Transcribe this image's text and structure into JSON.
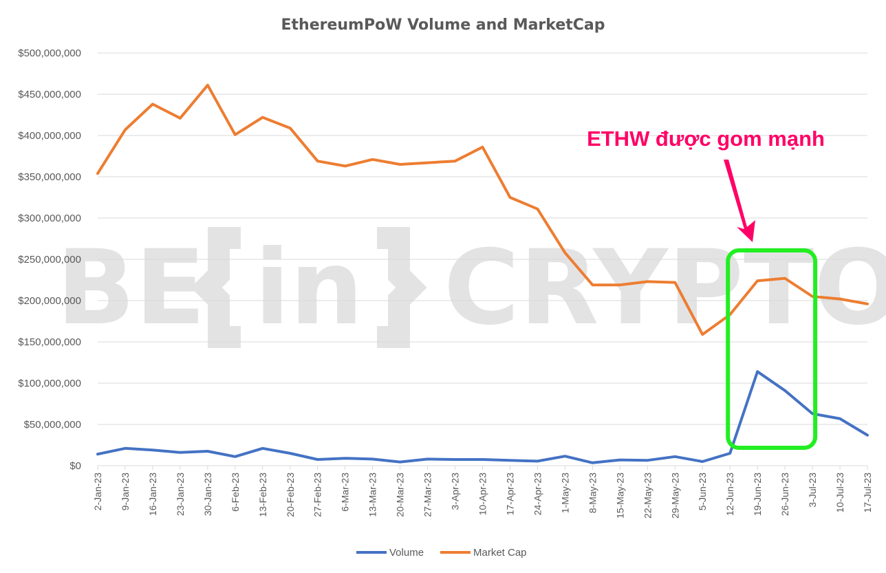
{
  "chart_data": {
    "type": "line",
    "title": "EthereumPoW Volume and MarketCap",
    "categories": [
      "2-Jan-23",
      "9-Jan-23",
      "16-Jan-23",
      "23-Jan-23",
      "30-Jan-23",
      "6-Feb-23",
      "13-Feb-23",
      "20-Feb-23",
      "27-Feb-23",
      "6-Mar-23",
      "13-Mar-23",
      "20-Mar-23",
      "27-Mar-23",
      "3-Apr-23",
      "10-Apr-23",
      "17-Apr-23",
      "24-Apr-23",
      "1-May-23",
      "8-May-23",
      "15-May-23",
      "22-May-23",
      "29-May-23",
      "5-Jun-23",
      "12-Jun-23",
      "19-Jun-23",
      "26-Jun-23",
      "3-Jul-23",
      "10-Jul-23",
      "17-Jul-23"
    ],
    "series": [
      {
        "name": "Volume",
        "color": "#4472c4",
        "values": [
          14000000,
          21000000,
          19000000,
          16000000,
          17500000,
          11000000,
          21000000,
          15000000,
          7500000,
          9000000,
          8000000,
          4500000,
          8000000,
          7500000,
          7500000,
          6500000,
          5500000,
          11500000,
          3500000,
          7000000,
          6500000,
          11000000,
          5000000,
          15000000,
          114000000,
          91000000,
          63000000,
          57000000,
          37000000
        ]
      },
      {
        "name": "Market Cap",
        "color": "#ed7d31",
        "values": [
          354000000,
          407000000,
          438000000,
          421000000,
          461000000,
          401000000,
          422000000,
          409000000,
          369000000,
          363000000,
          371000000,
          365000000,
          367000000,
          369000000,
          386000000,
          325000000,
          311000000,
          258000000,
          219000000,
          219000000,
          223000000,
          222000000,
          159000000,
          183000000,
          224000000,
          227000000,
          205000000,
          202000000,
          196000000
        ]
      }
    ],
    "y_ticks": [
      "$0",
      "$50,000,000",
      "$100,000,000",
      "$150,000,000",
      "$200,000,000",
      "$250,000,000",
      "$300,000,000",
      "$350,000,000",
      "$400,000,000",
      "$450,000,000",
      "$500,000,000"
    ],
    "ylim": [
      0,
      500000000
    ],
    "grid": true,
    "legend_position": "bottom",
    "annotation": {
      "text": "ETHW được gom mạnh",
      "color": "#ff0066",
      "highlight_color": "#22ee22",
      "highlight_from": "12-Jun-23",
      "highlight_to": "26-Jun-23"
    }
  },
  "watermark": {
    "left": "BE",
    "middle": "in",
    "right": "CRYPTO"
  }
}
